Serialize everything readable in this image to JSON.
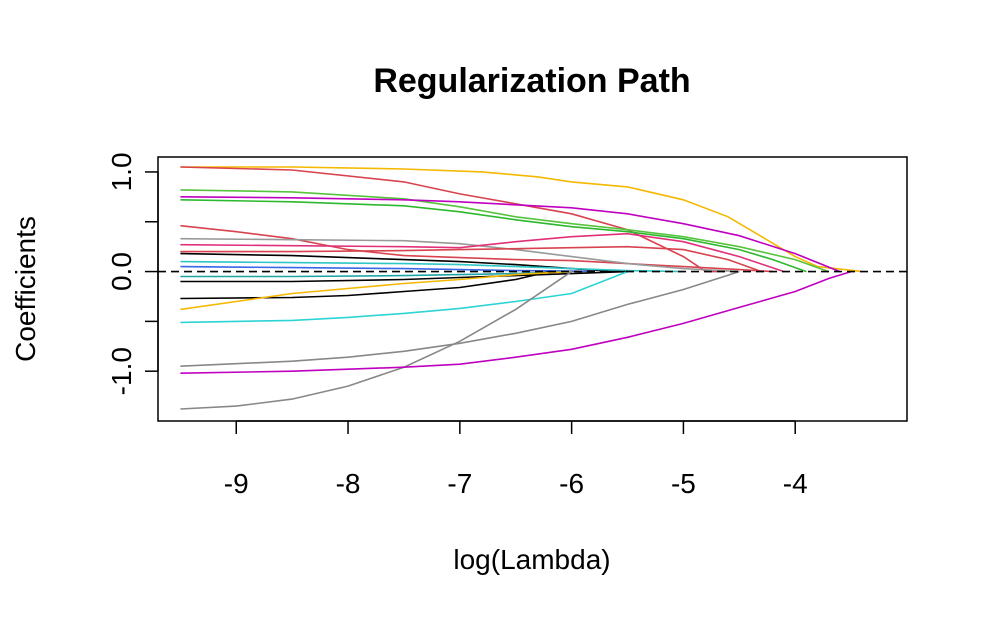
{
  "chart_data": {
    "type": "line",
    "title": "Regularization Path",
    "xlabel": "log(Lambda)",
    "ylabel": "Coefficients",
    "xlim": [
      -9.7,
      -3.0
    ],
    "ylim": [
      -1.5,
      1.15
    ],
    "x_ticks": [
      -9,
      -8,
      -7,
      -6,
      -5,
      -4
    ],
    "x_tick_labels": [
      "-9",
      "-8",
      "-7",
      "-6",
      "-5",
      "-4"
    ],
    "y_ticks": [
      -1.0,
      -0.5,
      0.0,
      0.5,
      1.0
    ],
    "y_tick_labels": [
      "-1.0",
      "",
      "0.0",
      "",
      "1.0"
    ],
    "zero_line": {
      "y": 0,
      "style": "dashed",
      "color": "#000000"
    },
    "grid": false,
    "legend": "none",
    "series": [
      {
        "color": "#f5b800",
        "x": [
          -9.5,
          -8.5,
          -7.5,
          -6.8,
          -6.3,
          -6.0,
          -5.5,
          -5.0,
          -4.6,
          -4.3,
          -4.0,
          -3.8,
          -3.4
        ],
        "y": [
          1.05,
          1.05,
          1.03,
          1.0,
          0.95,
          0.9,
          0.85,
          0.72,
          0.55,
          0.35,
          0.15,
          0.05,
          0.0
        ]
      },
      {
        "color": "#d8434f",
        "x": [
          -9.5,
          -8.5,
          -7.5,
          -7.0,
          -6.5,
          -6.0,
          -5.5,
          -5.0,
          -4.8,
          -4.7
        ],
        "y": [
          1.05,
          1.02,
          0.9,
          0.78,
          0.68,
          0.58,
          0.42,
          0.15,
          0.0,
          0.0
        ]
      },
      {
        "color": "#56c43c",
        "x": [
          -9.5,
          -8.5,
          -7.5,
          -7.0,
          -6.5,
          -6.0,
          -5.5,
          -5.0,
          -4.5,
          -4.0,
          -3.7
        ],
        "y": [
          0.82,
          0.8,
          0.73,
          0.65,
          0.55,
          0.48,
          0.42,
          0.35,
          0.25,
          0.12,
          0.0
        ]
      },
      {
        "color": "#2eb82e",
        "x": [
          -9.5,
          -8.5,
          -7.5,
          -7.0,
          -6.5,
          -6.0,
          -5.5,
          -5.0,
          -4.5,
          -4.2,
          -3.9
        ],
        "y": [
          0.72,
          0.7,
          0.66,
          0.6,
          0.52,
          0.45,
          0.4,
          0.33,
          0.22,
          0.12,
          0.0
        ]
      },
      {
        "color": "#c000c0",
        "x": [
          -9.5,
          -8.5,
          -7.5,
          -7.0,
          -6.5,
          -6.0,
          -5.5,
          -5.0,
          -4.5,
          -4.0,
          -3.6
        ],
        "y": [
          0.75,
          0.74,
          0.72,
          0.7,
          0.67,
          0.64,
          0.58,
          0.48,
          0.36,
          0.18,
          0.0
        ]
      },
      {
        "color": "#d8434f",
        "x": [
          -9.5,
          -9.0,
          -8.5,
          -8.0,
          -7.5,
          -7.0,
          -6.5,
          -6.0,
          -5.5,
          -5.0,
          -4.5,
          -4.2
        ],
        "y": [
          0.46,
          0.4,
          0.33,
          0.22,
          0.16,
          0.14,
          0.12,
          0.11,
          0.08,
          0.05,
          0.02,
          0.0
        ]
      },
      {
        "color": "#999999",
        "x": [
          -9.5,
          -8.5,
          -7.5,
          -7.0,
          -6.5,
          -6.0,
          -5.5,
          -5.0,
          -4.5
        ],
        "y": [
          0.33,
          0.32,
          0.31,
          0.28,
          0.22,
          0.15,
          0.08,
          0.03,
          0.0
        ]
      },
      {
        "color": "#e0307a",
        "x": [
          -9.5,
          -8.5,
          -7.5,
          -7.0,
          -6.5,
          -6.0,
          -5.5,
          -5.0,
          -4.5,
          -4.1
        ],
        "y": [
          0.27,
          0.26,
          0.25,
          0.24,
          0.3,
          0.35,
          0.38,
          0.3,
          0.15,
          0.0
        ]
      },
      {
        "color": "#d8434f",
        "x": [
          -9.5,
          -8.5,
          -7.5,
          -7.0,
          -6.5,
          -6.0,
          -5.5,
          -5.0,
          -4.6,
          -4.3
        ],
        "y": [
          0.2,
          0.2,
          0.21,
          0.22,
          0.23,
          0.24,
          0.25,
          0.22,
          0.12,
          0.0
        ]
      },
      {
        "color": "#000000",
        "x": [
          -9.5,
          -8.5,
          -7.5,
          -7.0,
          -6.5,
          -6.0,
          -5.6
        ],
        "y": [
          0.18,
          0.16,
          0.12,
          0.1,
          0.07,
          0.03,
          0.0
        ]
      },
      {
        "color": "#2ec6c6",
        "x": [
          -9.5,
          -8.5,
          -7.5,
          -7.0,
          -6.5,
          -6.0,
          -5.5,
          -5.0
        ],
        "y": [
          0.1,
          0.09,
          0.08,
          0.07,
          0.05,
          0.03,
          0.01,
          0.0
        ]
      },
      {
        "color": "#3a66e8",
        "x": [
          -9.5,
          -8.5,
          -7.5,
          -7.0,
          -6.5,
          -6.0,
          -5.8
        ],
        "y": [
          0.05,
          0.04,
          0.03,
          0.02,
          0.01,
          0.005,
          0.0
        ]
      },
      {
        "color": "#1ea4a4",
        "x": [
          -9.5,
          -8.5,
          -7.5,
          -7.0,
          -6.5,
          -6.0
        ],
        "y": [
          -0.05,
          -0.05,
          -0.04,
          -0.03,
          -0.02,
          0.0
        ]
      },
      {
        "color": "#000000",
        "x": [
          -9.5,
          -8.5,
          -7.5,
          -7.0,
          -6.5,
          -6.0,
          -5.5
        ],
        "y": [
          -0.1,
          -0.1,
          -0.08,
          -0.06,
          -0.04,
          -0.02,
          0.0
        ]
      },
      {
        "color": "#000000",
        "x": [
          -9.5,
          -8.5,
          -8.0,
          -7.5,
          -7.0,
          -6.5,
          -6.2
        ],
        "y": [
          -0.27,
          -0.26,
          -0.24,
          -0.2,
          -0.16,
          -0.08,
          0.0
        ]
      },
      {
        "color": "#f5b800",
        "x": [
          -9.5,
          -9.0,
          -8.5,
          -8.0,
          -7.5,
          -7.0,
          -6.5,
          -6.0
        ],
        "y": [
          -0.38,
          -0.3,
          -0.22,
          -0.17,
          -0.12,
          -0.08,
          -0.03,
          0.0
        ]
      },
      {
        "color": "#2ed4d4",
        "x": [
          -9.5,
          -8.5,
          -8.0,
          -7.5,
          -7.0,
          -6.5,
          -6.0,
          -5.5
        ],
        "y": [
          -0.51,
          -0.49,
          -0.46,
          -0.42,
          -0.37,
          -0.3,
          -0.22,
          0.0
        ]
      },
      {
        "color": "#888888",
        "x": [
          -9.5,
          -8.5,
          -8.0,
          -7.5,
          -7.0,
          -6.5,
          -6.0,
          -5.5,
          -5.0,
          -4.5
        ],
        "y": [
          -0.95,
          -0.9,
          -0.86,
          -0.8,
          -0.72,
          -0.62,
          -0.5,
          -0.33,
          -0.18,
          0.0
        ]
      },
      {
        "color": "#888888",
        "x": [
          -9.5,
          -9.0,
          -8.5,
          -8.0,
          -7.5,
          -7.0,
          -6.5,
          -6.0
        ],
        "y": [
          -1.38,
          -1.35,
          -1.28,
          -1.15,
          -0.96,
          -0.7,
          -0.38,
          0.0
        ]
      },
      {
        "color": "#c000c0",
        "x": [
          -9.5,
          -8.5,
          -8.0,
          -7.5,
          -7.0,
          -6.5,
          -6.0,
          -5.5,
          -5.0,
          -4.5,
          -4.0,
          -3.7,
          -3.5
        ],
        "y": [
          -1.02,
          -1.0,
          -0.98,
          -0.96,
          -0.93,
          -0.86,
          -0.78,
          -0.66,
          -0.52,
          -0.36,
          -0.2,
          -0.07,
          0.0
        ]
      }
    ]
  }
}
